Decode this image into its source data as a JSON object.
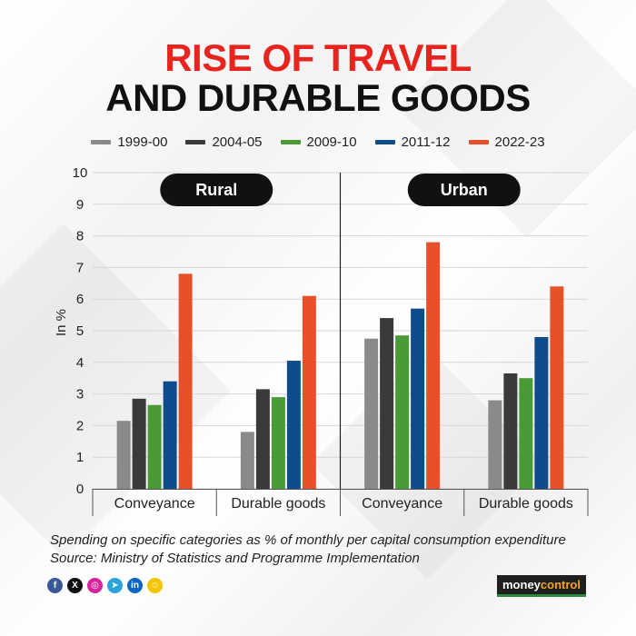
{
  "header": {
    "title_line1": "RISE OF TRAVEL",
    "title_line2": "AND DURABLE GOODS"
  },
  "colors": {
    "title_red": "#e8241e",
    "title_dark": "#111111",
    "pill_bg": "#111111"
  },
  "chart_data": {
    "type": "bar",
    "ylabel": "In %",
    "ylim": [
      0,
      10
    ],
    "yticks": [
      0,
      1,
      2,
      3,
      4,
      5,
      6,
      7,
      8,
      9,
      10
    ],
    "grid": true,
    "legend_position": "top",
    "panels": [
      {
        "label": "Rural",
        "categories": [
          "Conveyance",
          "Durable goods"
        ],
        "series": [
          {
            "name": "1999-00",
            "color": "#8a8a8a",
            "values": [
              2.15,
              1.8
            ]
          },
          {
            "name": "2004-05",
            "color": "#3a3a3a",
            "values": [
              2.85,
              3.15
            ]
          },
          {
            "name": "2009-10",
            "color": "#4a9a36",
            "values": [
              2.65,
              2.9
            ]
          },
          {
            "name": "2011-12",
            "color": "#0f4c8c",
            "values": [
              3.4,
              4.05
            ]
          },
          {
            "name": "2022-23",
            "color": "#e8502a",
            "values": [
              6.8,
              6.1
            ]
          }
        ]
      },
      {
        "label": "Urban",
        "categories": [
          "Conveyance",
          "Durable goods"
        ],
        "series": [
          {
            "name": "1999-00",
            "color": "#8a8a8a",
            "values": [
              4.75,
              2.8
            ]
          },
          {
            "name": "2004-05",
            "color": "#3a3a3a",
            "values": [
              5.4,
              3.65
            ]
          },
          {
            "name": "2009-10",
            "color": "#4a9a36",
            "values": [
              4.85,
              3.5
            ]
          },
          {
            "name": "2011-12",
            "color": "#0f4c8c",
            "values": [
              5.7,
              4.8
            ]
          },
          {
            "name": "2022-23",
            "color": "#e8502a",
            "values": [
              7.8,
              6.4
            ]
          }
        ]
      }
    ]
  },
  "footer": {
    "note": "Spending on specific categories as % of monthly per capital consumption expenditure",
    "source": "Source: Ministry of Statistics and Programme Implementation",
    "social_icons": [
      {
        "name": "facebook-icon",
        "glyph": "f",
        "color": "#3b5998"
      },
      {
        "name": "x-icon",
        "glyph": "X",
        "color": "#111111"
      },
      {
        "name": "instagram-icon",
        "glyph": "◎",
        "color": "#d6249f"
      },
      {
        "name": "telegram-icon",
        "glyph": "➤",
        "color": "#2aa3d9"
      },
      {
        "name": "linkedin-icon",
        "glyph": "in",
        "color": "#0a66c2"
      },
      {
        "name": "snapchat-icon",
        "glyph": "☺",
        "color": "#f5c400"
      }
    ],
    "logo_part1": "money",
    "logo_part2": "control"
  }
}
